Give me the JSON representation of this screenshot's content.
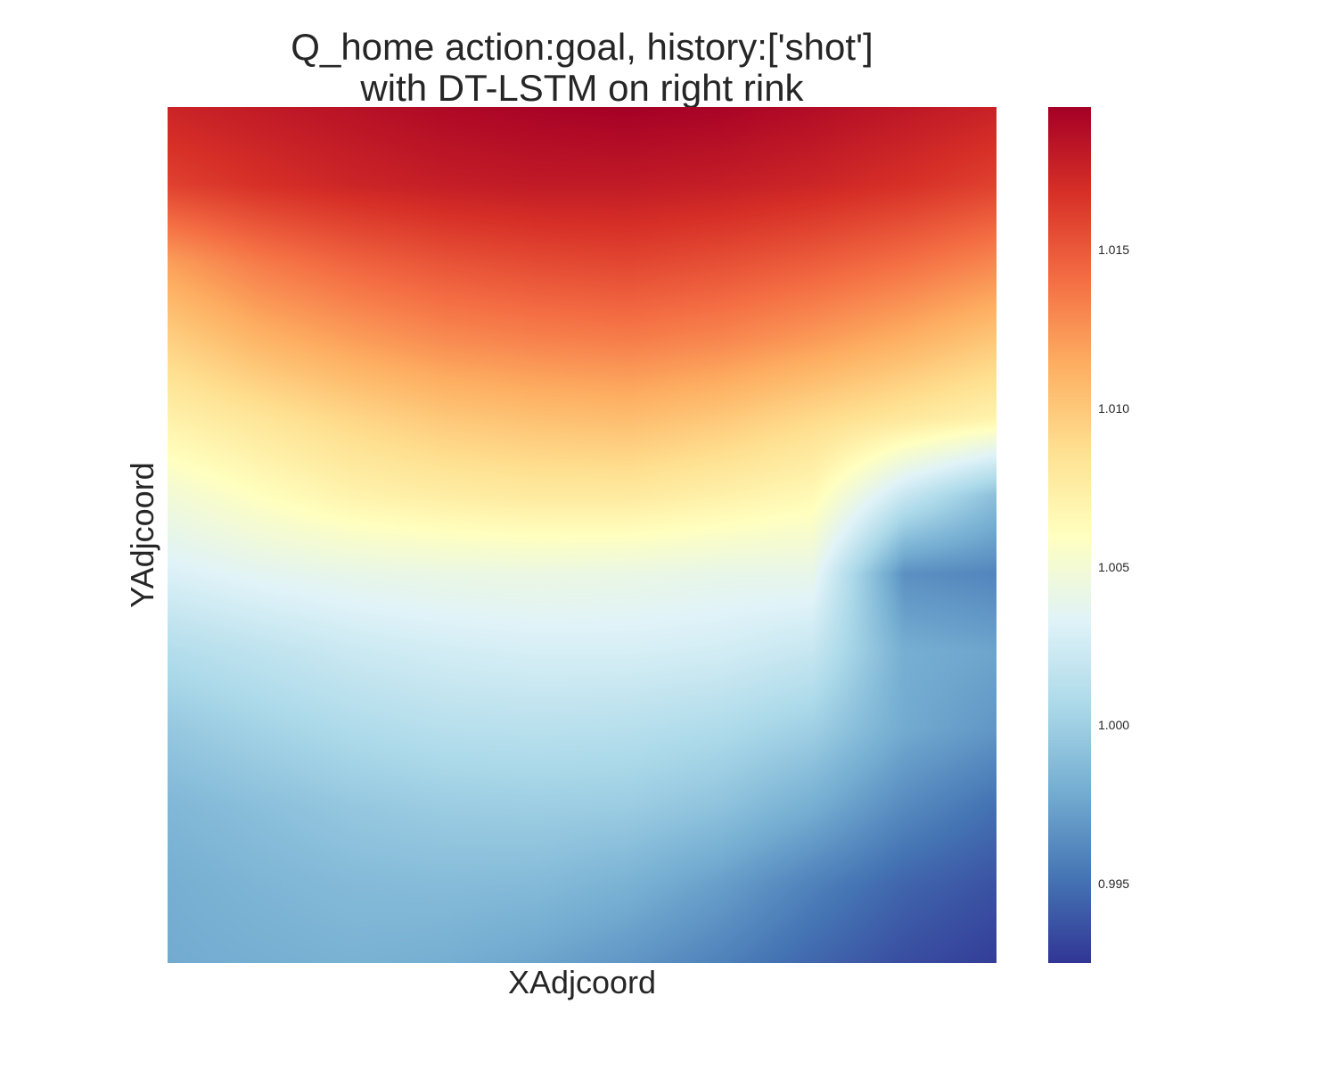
{
  "chart_data": {
    "type": "heatmap",
    "title_lines": [
      "Q_home action:goal, history:['shot']",
      "with DT-LSTM on right rink"
    ],
    "xlabel": "XAdjcoord",
    "ylabel": "YAdjcoord",
    "colormap": "RdYlBu_r",
    "colormap_stops": [
      "#313695",
      "#4575b4",
      "#74add1",
      "#abd9e9",
      "#e0f3f8",
      "#ffffbf",
      "#fee090",
      "#fdae61",
      "#f46d43",
      "#d73027",
      "#a50026"
    ],
    "color_range": [
      0.9925,
      1.0195
    ],
    "colorbar_ticks": [
      "0.995",
      "1.000",
      "1.005",
      "1.010",
      "1.015"
    ],
    "colorbar_tick_values": [
      0.995,
      1.0,
      1.005,
      1.01,
      1.015
    ],
    "grid": {
      "rows": 12,
      "cols": 10,
      "row_order": "top-to-bottom",
      "values": [
        [
          1.0175,
          1.018,
          1.0185,
          1.019,
          1.0193,
          1.0195,
          1.0193,
          1.0188,
          1.0182,
          1.0176
        ],
        [
          1.016,
          1.0168,
          1.0174,
          1.0178,
          1.018,
          1.018,
          1.0178,
          1.0174,
          1.0168,
          1.016
        ],
        [
          1.012,
          1.0135,
          1.0145,
          1.0152,
          1.0156,
          1.0158,
          1.0154,
          1.0148,
          1.014,
          1.013
        ],
        [
          1.0095,
          1.011,
          1.012,
          1.0128,
          1.0132,
          1.0134,
          1.013,
          1.0122,
          1.0112,
          1.01
        ],
        [
          1.0072,
          1.0082,
          1.0092,
          1.01,
          1.0104,
          1.0106,
          1.01,
          1.009,
          1.008,
          1.007
        ],
        [
          1.0048,
          1.006,
          1.007,
          1.0075,
          1.0078,
          1.0078,
          1.0072,
          1.0065,
          1.002,
          0.999
        ],
        [
          1.003,
          1.0036,
          1.004,
          1.0042,
          1.0043,
          1.0042,
          1.004,
          1.004,
          0.9965,
          0.996
        ],
        [
          1.001,
          1.0016,
          1.0022,
          1.0026,
          1.0028,
          1.0028,
          1.0026,
          1.002,
          0.998,
          0.9975
        ],
        [
          0.9995,
          1.0002,
          1.0008,
          1.0012,
          1.0013,
          1.0012,
          1.0008,
          1.0,
          0.9978,
          0.9968
        ],
        [
          0.9985,
          0.999,
          0.9995,
          0.9998,
          0.9999,
          0.9998,
          0.9992,
          0.998,
          0.9962,
          0.995
        ],
        [
          0.998,
          0.9984,
          0.9987,
          0.9988,
          0.9987,
          0.9982,
          0.9972,
          0.9958,
          0.9945,
          0.9937
        ],
        [
          0.9978,
          0.998,
          0.9982,
          0.998,
          0.9975,
          0.9968,
          0.9958,
          0.9946,
          0.9935,
          0.9928
        ]
      ]
    }
  }
}
